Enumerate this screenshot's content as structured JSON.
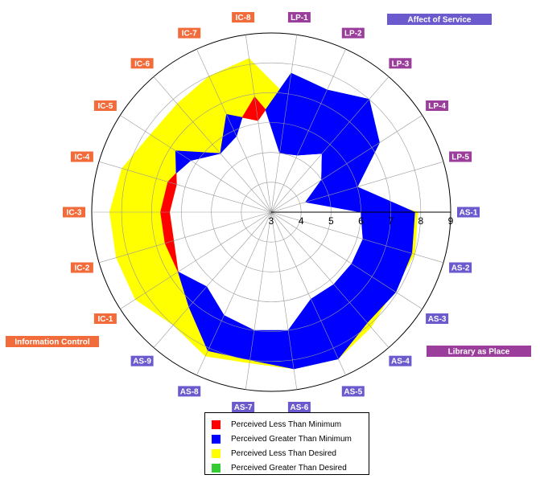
{
  "chart_data": {
    "type": "radar",
    "title": "",
    "r_range": [
      3,
      9
    ],
    "r_ticks": [
      "3",
      "4",
      "5",
      "6",
      "7",
      "8",
      "9"
    ],
    "axes": [
      {
        "label": "AS-1",
        "group": "Affect of Service",
        "minimum": 6.0,
        "desired": 7.9,
        "perceived": 7.8
      },
      {
        "label": "AS-2",
        "group": "Affect of Service",
        "minimum": 6.2,
        "desired": 8.0,
        "perceived": 7.9
      },
      {
        "label": "AS-3",
        "group": "Affect of Service",
        "minimum": 6.2,
        "desired": 7.85,
        "perceived": 7.95
      },
      {
        "label": "AS-4",
        "group": "Affect of Service",
        "minimum": 6.2,
        "desired": 8.1,
        "perceived": 7.9
      },
      {
        "label": "AS-5",
        "group": "Affect of Service",
        "minimum": 6.2,
        "desired": 8.4,
        "perceived": 8.4
      },
      {
        "label": "AS-6",
        "group": "Affect of Service",
        "minimum": 7.0,
        "desired": 8.3,
        "perceived": 8.3
      },
      {
        "label": "AS-7",
        "group": "Affect of Service",
        "minimum": 7.0,
        "desired": 8.1,
        "perceived": 8.0
      },
      {
        "label": "AS-8",
        "group": "Affect of Service",
        "minimum": 6.8,
        "desired": 8.3,
        "perceived": 8.1
      },
      {
        "label": "AS-9",
        "group": "Affect of Service",
        "minimum": 6.3,
        "desired": 8.0,
        "perceived": 7.2
      },
      {
        "label": "IC-1",
        "group": "Information Control",
        "minimum": 6.7,
        "desired": 8.4,
        "perceived": 6.7
      },
      {
        "label": "IC-2",
        "group": "Information Control",
        "minimum": 6.7,
        "desired": 8.4,
        "perceived": 6.4
      },
      {
        "label": "IC-3",
        "group": "Information Control",
        "minimum": 6.7,
        "desired": 8.4,
        "perceived": 6.4
      },
      {
        "label": "IC-4",
        "group": "Information Control",
        "minimum": 6.6,
        "desired": 8.2,
        "perceived": 6.3
      },
      {
        "label": "IC-5",
        "group": "Information Control",
        "minimum": 6.2,
        "desired": 7.8,
        "perceived": 6.8
      },
      {
        "label": "IC-6",
        "group": "Information Control",
        "minimum": 5.6,
        "desired": 7.8,
        "perceived": 5.6
      },
      {
        "label": "IC-7",
        "group": "Information Control",
        "minimum": 5.8,
        "desired": 8.0,
        "perceived": 6.6
      },
      {
        "label": "IC-8",
        "group": "Information Control",
        "minimum": 6.9,
        "desired": 8.2,
        "perceived": 6.1
      },
      {
        "label": "LP-1",
        "group": "Library as Place",
        "minimum": 5.0,
        "desired": 6.6,
        "perceived": 7.7
      },
      {
        "label": "LP-2",
        "group": "Library as Place",
        "minimum": 5.1,
        "desired": 6.7,
        "perceived": 7.5
      },
      {
        "label": "LP-3",
        "group": "Library as Place",
        "minimum": 5.6,
        "desired": 7.5,
        "perceived": 8.0
      },
      {
        "label": "LP-4",
        "group": "Library as Place",
        "minimum": 5.0,
        "desired": 6.5,
        "perceived": 7.3
      },
      {
        "label": "LP-5",
        "group": "Library as Place",
        "minimum": 4.2,
        "desired": 5.4,
        "perceived": 6.0
      }
    ],
    "groups": [
      {
        "name": "Affect of Service",
        "color": "#6a5acd"
      },
      {
        "name": "Information Control",
        "color": "#f26b3a"
      },
      {
        "name": "Library as Place",
        "color": "#9b3d9b"
      }
    ],
    "legend": [
      {
        "label": "Perceived Less Than Minimum",
        "color": "#ff0000"
      },
      {
        "label": "Perceived Greater Than Minimum",
        "color": "#0000ff"
      },
      {
        "label": "Perceived Less Than Desired",
        "color": "#ffff00"
      },
      {
        "label": "Perceived Greater Than Desired",
        "color": "#33cc33"
      }
    ],
    "legend_placement": "bottom-center",
    "grid": true
  }
}
